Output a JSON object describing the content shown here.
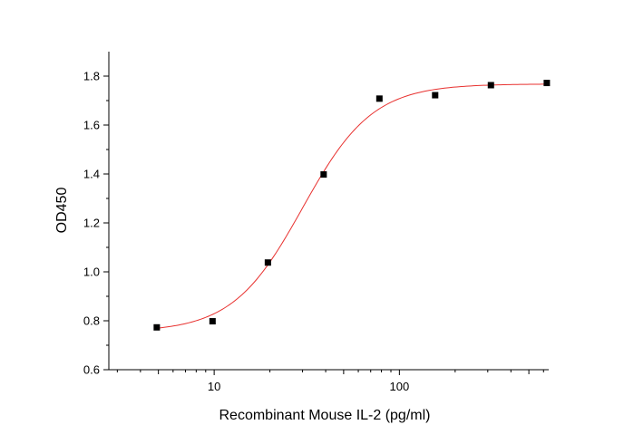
{
  "chart_data": {
    "type": "scatter",
    "title": "",
    "xlabel": "Recombinant Mouse IL-2 (pg/ml)",
    "ylabel": "OD450",
    "xscale": "log",
    "xlim": [
      2.7,
      640
    ],
    "ylim": [
      0.6,
      1.9
    ],
    "grid": false,
    "legend": "none",
    "x_ticks": [
      10,
      100
    ],
    "x_tick_labels": [
      "10",
      "100"
    ],
    "y_ticks": [
      0.6,
      0.8,
      1.0,
      1.2,
      1.4,
      1.6,
      1.8
    ],
    "y_tick_labels": [
      "0.6",
      "0.8",
      "1.0",
      "1.2",
      "1.4",
      "1.6",
      "1.8"
    ],
    "series": [
      {
        "marker": "square",
        "color": "#000000",
        "x": [
          4.9,
          9.8,
          19.5,
          39,
          78,
          156,
          312,
          625
        ],
        "y": [
          0.773,
          0.798,
          1.038,
          1.398,
          1.708,
          1.722,
          1.763,
          1.772
        ]
      }
    ],
    "fit": {
      "model": "4PL",
      "color": "#e8312f",
      "params": {
        "bottom": 0.754,
        "top": 1.768,
        "ec50": 30,
        "hill": 2.3
      }
    }
  }
}
